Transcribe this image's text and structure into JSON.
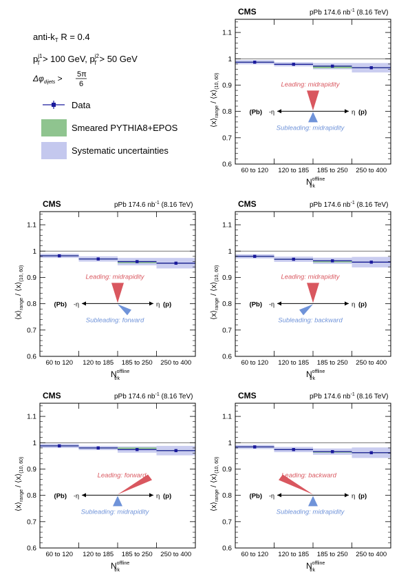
{
  "legend": {
    "jet_alg": "anti-k",
    "jet_alg_sub": "T",
    "radius": "R = 0.4",
    "pt_lead": "p",
    "pt_lead_sup": "j1",
    "pt_lead_sub": "T",
    "pt_lead_cut": " > 100 GeV, ",
    "pt_sub": "p",
    "pt_sub_sup": "j2",
    "pt_sub_sub": "T",
    "pt_sub_cut": " > 50 GeV",
    "dphi": "Δφ",
    "dphi_sub": "dijets",
    "dphi_gt": " > ",
    "dphi_num": "5π",
    "dphi_den": "6",
    "items": [
      {
        "label": "Data",
        "kind": "marker",
        "color": "#1a1a9c"
      },
      {
        "label": "Smeared PYTHIA8+EPOS",
        "kind": "box",
        "color": "#8fc48f"
      },
      {
        "label": "Systematic uncertainties",
        "kind": "box",
        "color": "#c4c8ee"
      }
    ]
  },
  "common": {
    "cms": "CMS",
    "lumi_text": "pPb 174.6 nb",
    "lumi_sup": "-1",
    "energy": " (8.16 TeV)",
    "ylabel_main": "⟨x⟩",
    "ylabel_sub1": "range",
    "ylabel_mid": " / ⟨x⟩",
    "ylabel_sub2": "(10, 60)",
    "xlabel": "N",
    "xlabel_sup": "offline",
    "xlabel_sub": "trk",
    "pb_label": "(Pb)",
    "minus_eta": "-η",
    "eta_label": "η",
    "p_label": "(p)",
    "y_ticks": [
      "0.6",
      "0.7",
      "0.8",
      "0.9",
      "1",
      "1.1"
    ],
    "lead_color": "#d9575f",
    "sub_color": "#6f93d9"
  },
  "chart_data": [
    {
      "type": "scatter",
      "categories": [
        "60 to 120",
        "120 to 185",
        "185 to 250",
        "250 to 400"
      ],
      "ylim": [
        0.6,
        1.15
      ],
      "series": [
        {
          "name": "Data",
          "values": [
            0.987,
            0.979,
            0.972,
            0.966
          ]
        },
        {
          "name": "Smeared PYTHIA8+EPOS",
          "values": [
            0.985,
            0.977,
            0.962,
            0.966
          ]
        }
      ],
      "sys_unc": [
        0.008,
        0.008,
        0.012,
        0.018
      ],
      "leading": "Leading: midrapidity",
      "subleading": "Subleading: midrapidity",
      "lead_shape": "mid",
      "sub_shape": "mid"
    },
    {
      "type": "scatter",
      "categories": [
        "60 to 120",
        "120 to 185",
        "185 to 250",
        "250 to 400"
      ],
      "ylim": [
        0.6,
        1.15
      ],
      "series": [
        {
          "name": "Data",
          "values": [
            0.982,
            0.97,
            0.96,
            0.954
          ]
        },
        {
          "name": "Smeared PYTHIA8+EPOS",
          "values": [
            0.98,
            0.967,
            0.952,
            0.954
          ]
        }
      ],
      "sys_unc": [
        0.008,
        0.01,
        0.014,
        0.02
      ],
      "leading": "Leading: midrapidity",
      "subleading": "Subleading: forward",
      "lead_shape": "mid",
      "sub_shape": "forward"
    },
    {
      "type": "scatter",
      "categories": [
        "60 to 120",
        "120 to 185",
        "185 to 250",
        "250 to 400"
      ],
      "ylim": [
        0.6,
        1.15
      ],
      "series": [
        {
          "name": "Data",
          "values": [
            0.98,
            0.969,
            0.963,
            0.958
          ]
        },
        {
          "name": "Smeared PYTHIA8+EPOS",
          "values": [
            0.978,
            0.966,
            0.955,
            0.958
          ]
        }
      ],
      "sys_unc": [
        0.008,
        0.01,
        0.012,
        0.02
      ],
      "leading": "Leading: midrapidity",
      "subleading": "Subleading: backward",
      "lead_shape": "mid",
      "sub_shape": "backward"
    },
    {
      "type": "scatter",
      "categories": [
        "60 to 120",
        "120 to 185",
        "185 to 250",
        "250 to 400"
      ],
      "ylim": [
        0.6,
        1.15
      ],
      "series": [
        {
          "name": "Data",
          "values": [
            0.988,
            0.98,
            0.974,
            0.97
          ]
        },
        {
          "name": "Smeared PYTHIA8+EPOS",
          "values": [
            0.986,
            0.98,
            0.98,
            0.97
          ]
        }
      ],
      "sys_unc": [
        0.008,
        0.008,
        0.012,
        0.018
      ],
      "leading": "Leading: forward",
      "subleading": "Subleading: midrapidity",
      "lead_shape": "forward",
      "sub_shape": "mid"
    },
    {
      "type": "scatter",
      "categories": [
        "60 to 120",
        "120 to 185",
        "185 to 250",
        "250 to 400"
      ],
      "ylim": [
        0.6,
        1.15
      ],
      "series": [
        {
          "name": "Data",
          "values": [
            0.984,
            0.974,
            0.966,
            0.962
          ]
        },
        {
          "name": "Smeared PYTHIA8+EPOS",
          "values": [
            0.982,
            0.972,
            0.96,
            0.962
          ]
        }
      ],
      "sys_unc": [
        0.008,
        0.01,
        0.012,
        0.02
      ],
      "leading": "Leading: backward",
      "subleading": "Subleading: midrapidity",
      "lead_shape": "backward",
      "sub_shape": "mid"
    }
  ]
}
